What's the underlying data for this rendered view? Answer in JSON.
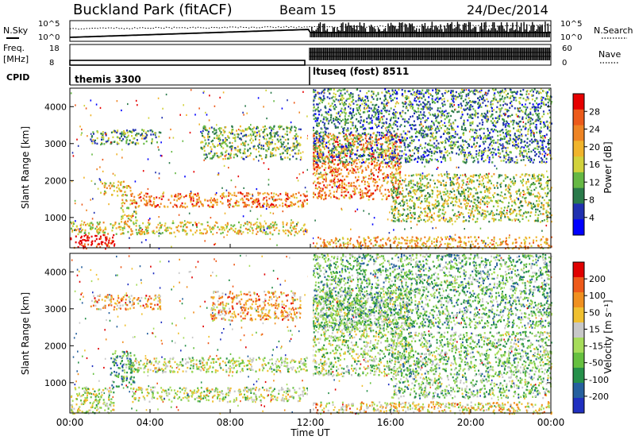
{
  "header": {
    "site": "Buckland Park (fitACF)",
    "beam": "Beam 15",
    "date": "24/Dec/2014"
  },
  "noise_panel": {
    "left_label": "N.Sky",
    "right_label": "N.Search",
    "left_ticks": [
      "10^5",
      "10^0"
    ],
    "right_ticks": [
      "10^5",
      "10^0"
    ]
  },
  "freq_panel": {
    "left_label_1": "Freq.",
    "left_label_2": "[MHz]",
    "right_label": "Nave",
    "left_ticks": [
      "18",
      "8"
    ],
    "right_ticks": [
      "60",
      "0"
    ],
    "cpid_label": "CPID",
    "cpid_segments": [
      "themis 3300",
      "ltuseq (fost) 8511"
    ]
  },
  "x_axis": {
    "label": "Time UT",
    "ticks": [
      "00:00",
      "04:00",
      "08:00",
      "12:00",
      "16:00",
      "20:00",
      "00:00"
    ]
  },
  "chart_data": [
    {
      "type": "heatmap",
      "name": "power",
      "ylabel": "Slant Range [km]",
      "yticks": [
        "1000",
        "2000",
        "3000",
        "4000"
      ],
      "ylim": [
        180,
        4500
      ],
      "xlim": [
        0,
        24
      ],
      "colorbar_label": "Power [dB]",
      "colorbar_ticks": [
        "4",
        "8",
        "12",
        "16",
        "20",
        "24",
        "28"
      ],
      "colors": [
        "#0000ff",
        "#2030b0",
        "#2a7a4a",
        "#66b844",
        "#d2d23c",
        "#f0b42c",
        "#ee8424",
        "#ec5a1a",
        "#e60000"
      ],
      "bands": [
        {
          "t0": 0.0,
          "t1": 2.2,
          "r0": 180,
          "r1": 560,
          "v": 0.95
        },
        {
          "t0": 0.0,
          "t1": 12.0,
          "r0": 560,
          "r1": 900,
          "v": 0.55
        },
        {
          "t0": 1.5,
          "t1": 3.0,
          "r0": 1600,
          "r1": 2000,
          "v": 0.6
        },
        {
          "t0": 2.5,
          "t1": 3.3,
          "r0": 900,
          "r1": 1500,
          "v": 0.55
        },
        {
          "t0": 3.0,
          "t1": 12.0,
          "r0": 1300,
          "r1": 1700,
          "v": 0.75
        },
        {
          "t0": 1.0,
          "t1": 4.5,
          "r0": 3000,
          "r1": 3400,
          "v": 0.35
        },
        {
          "t0": 6.5,
          "t1": 11.5,
          "r0": 2600,
          "r1": 3500,
          "v": 0.4
        },
        {
          "t0": 12.0,
          "t1": 16.5,
          "r0": 1500,
          "r1": 3300,
          "v": 0.75
        },
        {
          "t0": 12.0,
          "t1": 24.0,
          "r0": 180,
          "r1": 500,
          "v": 0.65
        },
        {
          "t0": 16.0,
          "t1": 24.0,
          "r0": 900,
          "r1": 2200,
          "v": 0.45
        },
        {
          "t0": 12.0,
          "t1": 24.0,
          "r0": 2500,
          "r1": 4500,
          "v": 0.3
        }
      ]
    },
    {
      "type": "heatmap",
      "name": "velocity",
      "ylabel": "Slant Range [km]",
      "yticks": [
        "1000",
        "2000",
        "3000",
        "4000"
      ],
      "ylim": [
        180,
        4500
      ],
      "xlim": [
        0,
        24
      ],
      "colorbar_label": "Velocity [m s⁻¹]",
      "colorbar_ticks": [
        "200",
        "100",
        "50",
        "15",
        "-15",
        "-50",
        "-100",
        "-200"
      ],
      "colors": [
        "#2030c0",
        "#26609e",
        "#26904a",
        "#66c040",
        "#a6dc5a",
        "#c8c8c8",
        "#f0c030",
        "#f09020",
        "#ee5a1a",
        "#e00000"
      ],
      "bands": [
        {
          "t0": 0.0,
          "t1": 2.2,
          "r0": 180,
          "r1": 900,
          "v": 0.5
        },
        {
          "t0": 2.0,
          "t1": 3.2,
          "r0": 900,
          "r1": 1900,
          "v": 0.3
        },
        {
          "t0": 3.0,
          "t1": 12.0,
          "r0": 1300,
          "r1": 1700,
          "v": 0.5
        },
        {
          "t0": 3.0,
          "t1": 12.0,
          "r0": 500,
          "r1": 900,
          "v": 0.5
        },
        {
          "t0": 1.0,
          "t1": 4.5,
          "r0": 3000,
          "r1": 3400,
          "v": 0.7
        },
        {
          "t0": 7.0,
          "t1": 11.5,
          "r0": 2700,
          "r1": 3500,
          "v": 0.7
        },
        {
          "t0": 12.0,
          "t1": 17.0,
          "r0": 1200,
          "r1": 3500,
          "v": 0.45
        },
        {
          "t0": 12.0,
          "t1": 24.0,
          "r0": 180,
          "r1": 500,
          "v": 0.6
        },
        {
          "t0": 16.0,
          "t1": 24.0,
          "r0": 600,
          "r1": 2400,
          "v": 0.4
        },
        {
          "t0": 12.0,
          "t1": 24.0,
          "r0": 2500,
          "r1": 4500,
          "v": 0.35
        }
      ]
    }
  ]
}
